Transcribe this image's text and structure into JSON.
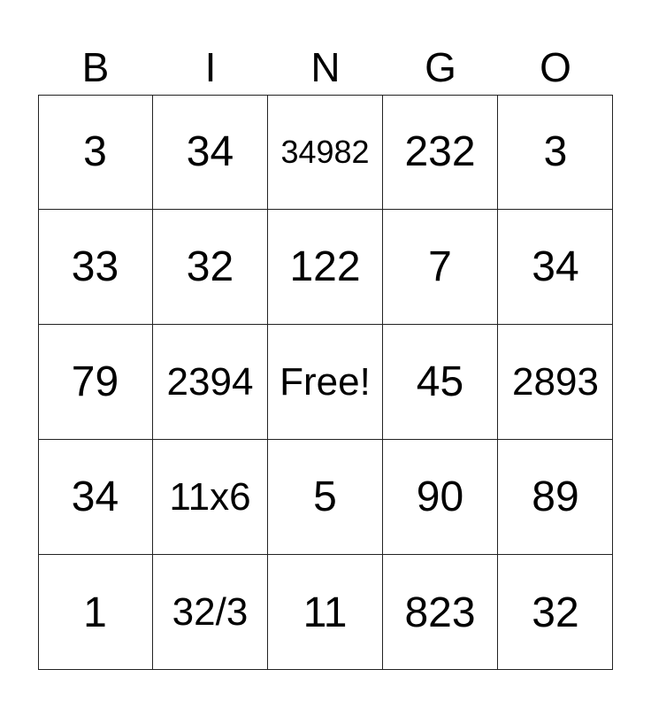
{
  "header": [
    "B",
    "I",
    "N",
    "G",
    "O"
  ],
  "rows": [
    [
      "3",
      "34",
      "34982",
      "232",
      "3"
    ],
    [
      "33",
      "32",
      "122",
      "7",
      "34"
    ],
    [
      "79",
      "2394",
      "Free!",
      "45",
      "2893"
    ],
    [
      "34",
      "11x6",
      "5",
      "90",
      "89"
    ],
    [
      "1",
      "32/3",
      "11",
      "823",
      "32"
    ]
  ]
}
